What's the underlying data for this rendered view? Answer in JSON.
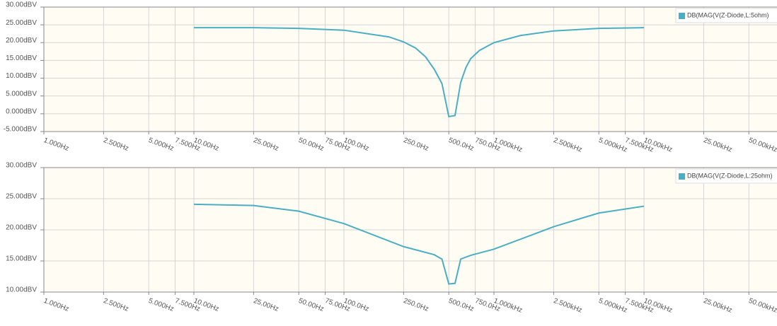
{
  "chart_data": [
    {
      "type": "line",
      "x": [
        10,
        25,
        50,
        100,
        200,
        250,
        300,
        350,
        400,
        450,
        500,
        550,
        600,
        650,
        700,
        800,
        1000,
        1500,
        2500,
        5000,
        10000
      ],
      "series": [
        {
          "name": "DB(MAG(V(Z-Diode,L:5ohm)",
          "color": "#4aaec4",
          "values": [
            24.2,
            24.2,
            24.0,
            23.5,
            21.6,
            20.2,
            18.5,
            16.0,
            12.5,
            8.5,
            -0.8,
            -0.5,
            8.8,
            13.0,
            15.5,
            17.8,
            20.0,
            22.0,
            23.3,
            24.0,
            24.2
          ]
        }
      ],
      "xlim": [
        1,
        77000
      ],
      "log_x": true,
      "ylim": [
        -5,
        30
      ],
      "xticks": [
        {
          "value": 1,
          "label": "1.000Hz"
        },
        {
          "value": 2.5,
          "label": "2.500Hz"
        },
        {
          "value": 5,
          "label": "5.000Hz"
        },
        {
          "value": 7.5,
          "label": "7.500Hz"
        },
        {
          "value": 10,
          "label": "10.00Hz"
        },
        {
          "value": 25,
          "label": "25.00Hz"
        },
        {
          "value": 50,
          "label": "50.00Hz"
        },
        {
          "value": 75,
          "label": "75.00Hz"
        },
        {
          "value": 100,
          "label": "100.0Hz"
        },
        {
          "value": 250,
          "label": "250.0Hz"
        },
        {
          "value": 500,
          "label": "500.0Hz"
        },
        {
          "value": 750,
          "label": "750.0Hz"
        },
        {
          "value": 1000,
          "label": "1.000kHz"
        },
        {
          "value": 2500,
          "label": "2.500kHz"
        },
        {
          "value": 5000,
          "label": "5.000kHz"
        },
        {
          "value": 7500,
          "label": "7.500kHz"
        },
        {
          "value": 10000,
          "label": "10.00kHz"
        },
        {
          "value": 25000,
          "label": "25.00kHz"
        },
        {
          "value": 50000,
          "label": "50.00kHz"
        }
      ],
      "yticks": [
        {
          "value": 30,
          "label": "30.00dBV"
        },
        {
          "value": 25,
          "label": "25.00dBV"
        },
        {
          "value": 20,
          "label": "20.00dBV"
        },
        {
          "value": 15,
          "label": "15.00dBV"
        },
        {
          "value": 10,
          "label": "10.00dBV"
        },
        {
          "value": 5,
          "label": "5.000dBV"
        },
        {
          "value": 0,
          "label": "0.000dBV"
        },
        {
          "value": -5,
          "label": "-5.000dBV"
        }
      ],
      "grid": true,
      "legend": "top-right"
    },
    {
      "type": "line",
      "x": [
        10,
        25,
        50,
        100,
        250,
        400,
        450,
        500,
        550,
        600,
        700,
        1000,
        2500,
        5000,
        10000
      ],
      "series": [
        {
          "name": "DB(MAG(V(Z-Diode,L:25ohm)",
          "color": "#4aaec4",
          "values": [
            24.1,
            23.9,
            23.0,
            21.0,
            17.3,
            16.0,
            15.3,
            11.3,
            11.4,
            15.3,
            15.9,
            16.9,
            20.5,
            22.7,
            23.8
          ]
        }
      ],
      "xlim": [
        1,
        77000
      ],
      "log_x": true,
      "ylim": [
        10,
        30
      ],
      "xticks": [
        {
          "value": 1,
          "label": "1.000Hz"
        },
        {
          "value": 2.5,
          "label": "2.500Hz"
        },
        {
          "value": 5,
          "label": "5.000Hz"
        },
        {
          "value": 7.5,
          "label": "7.500Hz"
        },
        {
          "value": 10,
          "label": "10.00Hz"
        },
        {
          "value": 25,
          "label": "25.00Hz"
        },
        {
          "value": 50,
          "label": "50.00Hz"
        },
        {
          "value": 75,
          "label": "75.00Hz"
        },
        {
          "value": 100,
          "label": "100.0Hz"
        },
        {
          "value": 250,
          "label": "250.0Hz"
        },
        {
          "value": 500,
          "label": "500.0Hz"
        },
        {
          "value": 750,
          "label": "750.0Hz"
        },
        {
          "value": 1000,
          "label": "1.000kHz"
        },
        {
          "value": 2500,
          "label": "2.500kHz"
        },
        {
          "value": 5000,
          "label": "5.000kHz"
        },
        {
          "value": 7500,
          "label": "7.500kHz"
        },
        {
          "value": 10000,
          "label": "10.00kHz"
        },
        {
          "value": 25000,
          "label": "25.00kHz"
        },
        {
          "value": 50000,
          "label": "50.00kHz"
        }
      ],
      "yticks": [
        {
          "value": 30,
          "label": "30.00dBV"
        },
        {
          "value": 25,
          "label": "25.00dBV"
        },
        {
          "value": 20,
          "label": "20.00dBV"
        },
        {
          "value": 15,
          "label": "15.00dBV"
        },
        {
          "value": 10,
          "label": "10.00dBV"
        }
      ],
      "grid": true,
      "legend": "top-right"
    }
  ]
}
